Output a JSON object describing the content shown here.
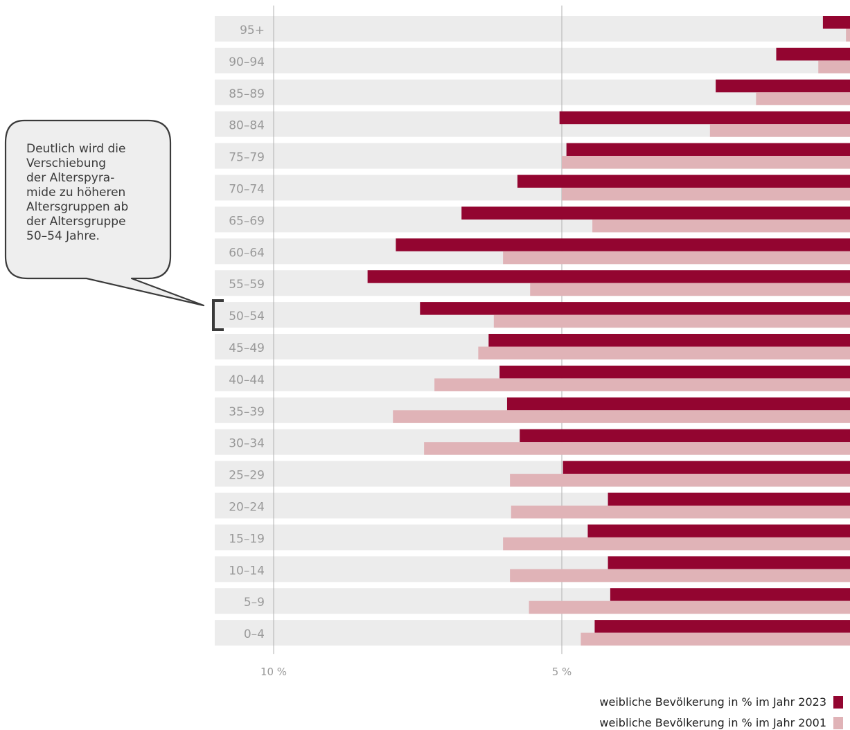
{
  "chart_data": {
    "type": "bar",
    "orientation": "horizontal",
    "categories": [
      "95+",
      "90–94",
      "85–89",
      "80–84",
      "75–79",
      "70–74",
      "65–69",
      "60–64",
      "55–59",
      "50–54",
      "45–49",
      "40–44",
      "35–39",
      "30–34",
      "25–29",
      "20–24",
      "15–19",
      "10–14",
      "5–9",
      "0–4"
    ],
    "series": [
      {
        "name": "weibliche Bevölkerung in % im Jahr 2023",
        "color": "#930530",
        "values": [
          0.47,
          1.28,
          2.33,
          5.04,
          4.92,
          5.77,
          6.74,
          7.88,
          8.37,
          7.46,
          6.27,
          6.08,
          5.95,
          5.73,
          4.98,
          4.2,
          4.55,
          4.2,
          4.16,
          4.43
        ]
      },
      {
        "name": "weibliche Bevölkerung in % im Jahr 2001",
        "color": "#e0b3b7",
        "values": [
          0.07,
          0.55,
          1.63,
          2.43,
          5.0,
          5.0,
          4.47,
          6.02,
          5.55,
          6.18,
          6.45,
          7.21,
          7.93,
          7.39,
          5.9,
          5.88,
          6.02,
          5.9,
          5.57,
          4.67
        ]
      }
    ],
    "xlim": [
      0,
      10
    ],
    "xaxis_reversed": true,
    "tick_labels": [
      "10 %",
      "5 %"
    ],
    "tick_values": [
      10,
      5
    ],
    "gridlines": [
      10,
      5
    ],
    "legend_position": "bottom-right"
  },
  "annotation": {
    "text": "Deutlich wird die\nVerschiebung\nder Alterspyra-\nmide zu höheren\nAltersgruppen ab\nder Altersgruppe\n50–54 Jahre.",
    "target_category": "50–54"
  },
  "colors": {
    "row_background": "#ececec",
    "gridline": "#b0b0b0",
    "category_label": "#999999",
    "callout_fill": "#eeeeee",
    "callout_stroke": "#3a3a3a"
  }
}
